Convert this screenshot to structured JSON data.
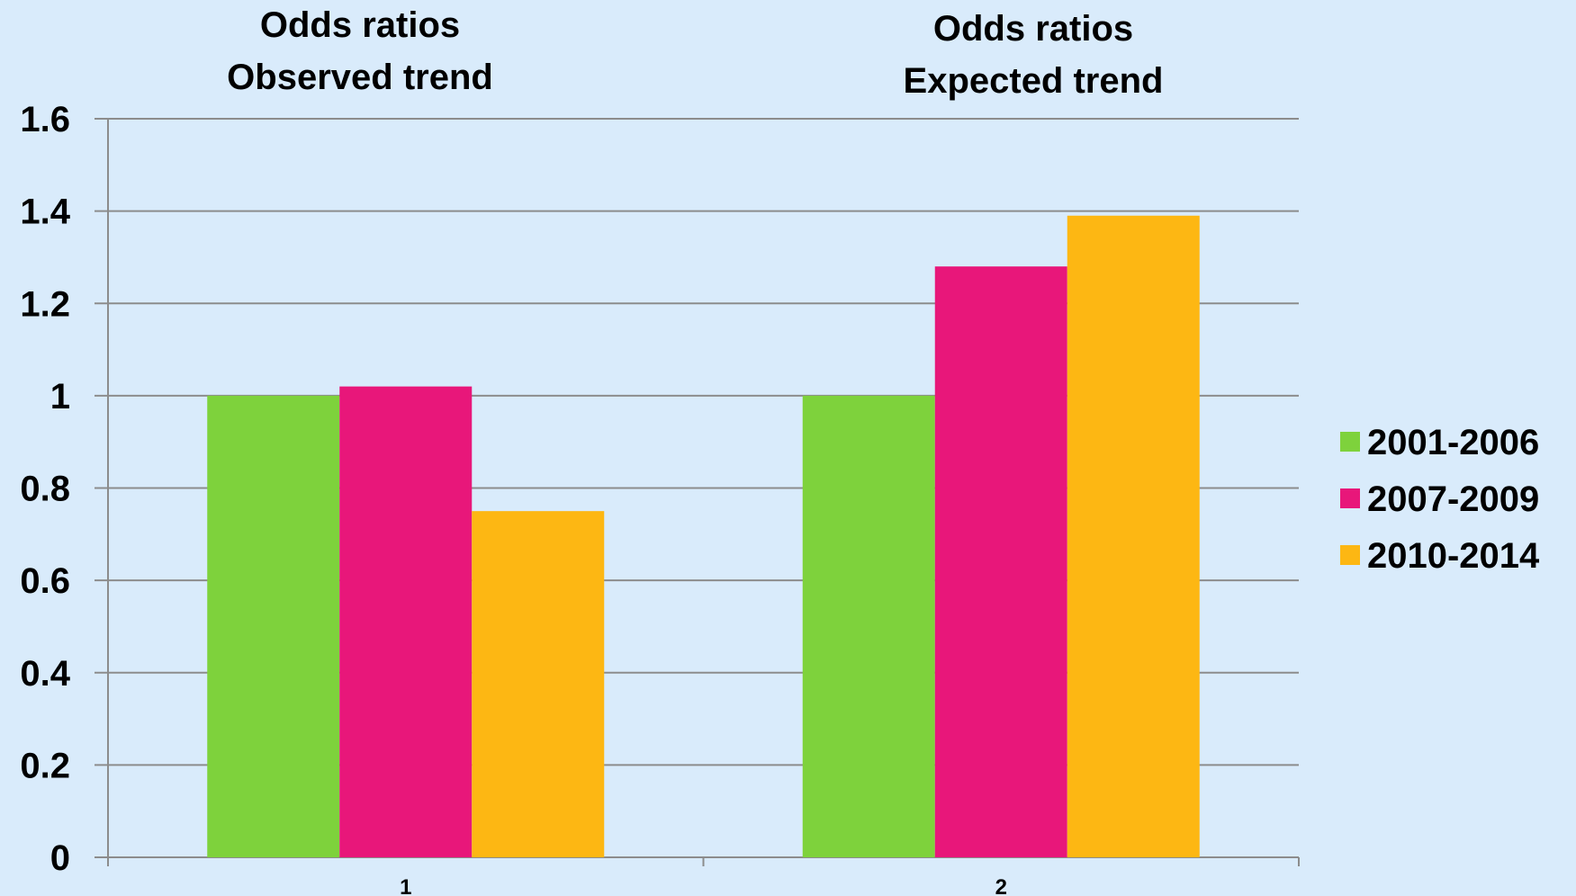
{
  "chart_data": {
    "type": "bar",
    "categories": [
      "1",
      "2"
    ],
    "category_titles": [
      [
        "Odds ratios",
        "Observed trend"
      ],
      [
        "Odds ratios",
        "Expected trend"
      ]
    ],
    "series": [
      {
        "name": "2001-2006",
        "values": [
          1.0,
          1.0
        ],
        "color": "#7ed23c"
      },
      {
        "name": "2007-2009",
        "values": [
          1.02,
          1.28
        ],
        "color": "#e8177a"
      },
      {
        "name": "2010-2014",
        "values": [
          0.75,
          1.39
        ],
        "color": "#fdb713"
      }
    ],
    "yticks": [
      "0",
      "0.2",
      "0.4",
      "0.6",
      "0.8",
      "1",
      "1.2",
      "1.4",
      "1.6"
    ],
    "ylim": [
      0,
      1.6
    ],
    "grid": true,
    "legend_position": "right",
    "xlabel": "",
    "ylabel": "",
    "title": ""
  },
  "colors": {
    "background": "#d9ebfb",
    "gridline": "#8c8c8c",
    "axis": "#8c8c8c"
  }
}
